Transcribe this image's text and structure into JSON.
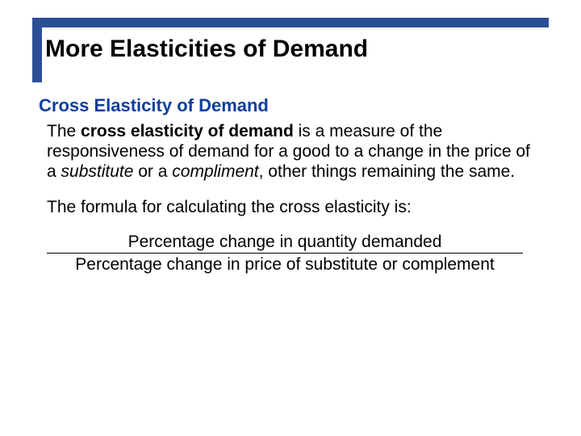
{
  "colors": {
    "accent": "#2b4f95",
    "subheading": "#0d3e9e",
    "text": "#000000",
    "background": "#ffffff"
  },
  "title": "More Elasticities of Demand",
  "subheading": "Cross Elasticity of Demand",
  "para1": {
    "lead": "The ",
    "bold": "cross elasticity of demand",
    "mid1": " is a measure of the responsiveness of demand for a good to a change in the price of a ",
    "ital1": "substitute",
    "mid2": " or a ",
    "ital2": "compliment",
    "tail": ", other things remaining the same."
  },
  "para2": "The formula for calculating the cross elasticity is:",
  "formula": {
    "numerator": "Percentage change in quantity demanded",
    "denominator": "Percentage change in price of substitute or complement"
  }
}
